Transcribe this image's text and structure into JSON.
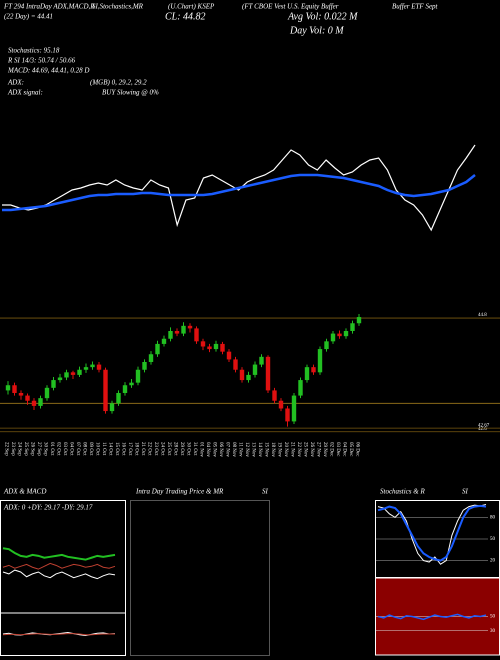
{
  "header": {
    "t1": "FT 294 IntraDay ADX,MACD,R",
    "t2": "SI,Stochastics,MR",
    "t3": "(U.Chart) KSEP",
    "t4": "(FT CBOE Vest U.S. Equity Buffer",
    "t5": "Buffer ETF Sept",
    "ema": "(22  Day) = 44.41",
    "close": "CL: 44.82",
    "avg_vol": "Avg Vol: 0.022  M",
    "day_vol": "Day Vol: 0   M",
    "stoch": "Stochastics: 95.18",
    "rsi": "R      SI 14/3: 50.74 / 50.66",
    "macd": "MACD: 44.69, 44.41, 0.28  D",
    "adx": "ADX:",
    "adx_values": "(MGB) 0, 29.2, 29.2",
    "adx_signal": "ADX  signal:",
    "signal": "BUY Slowing @ 0%"
  },
  "chart_data": [
    {
      "type": "line",
      "ylim": [
        0,
        180
      ],
      "series": [
        {
          "color": "#ffffff",
          "values": [
            85,
            85,
            82,
            80,
            82,
            85,
            90,
            95,
            100,
            102,
            105,
            107,
            105,
            110,
            105,
            102,
            100,
            110,
            105,
            102,
            65,
            90,
            92,
            112,
            115,
            110,
            105,
            100,
            108,
            112,
            115,
            120,
            130,
            140,
            135,
            125,
            120,
            130,
            122,
            115,
            118,
            125,
            130,
            132,
            120,
            100,
            90,
            85,
            75,
            60,
            80,
            100,
            120,
            132,
            145
          ]
        },
        {
          "color": "#1a5cff",
          "values": [
            80,
            80,
            81,
            82,
            83,
            84,
            86,
            88,
            90,
            92,
            94,
            95,
            95,
            96,
            96,
            96,
            97,
            97,
            96,
            95,
            95,
            95,
            95,
            95,
            96,
            98,
            100,
            102,
            104,
            106,
            108,
            110,
            112,
            114,
            115,
            115,
            115,
            114,
            113,
            112,
            110,
            108,
            106,
            104,
            100,
            97,
            95,
            94,
            95,
            96,
            98,
            100,
            104,
            108,
            115
          ]
        }
      ]
    },
    {
      "type": "candlestick",
      "ylim": [
        42.44,
        45.15
      ],
      "yticks": [
        42.6,
        42.67,
        44.8
      ],
      "grid": true,
      "grid_color": "#7a5a10",
      "levels": [
        43.15
      ],
      "level_color": "#8a6a18",
      "up_color": "#22c022",
      "down_color": "#e01010",
      "categories": [
        "22 Sep",
        "23 Sep",
        "24 Sep",
        "25 Sep",
        "26 Sep",
        "27 Sep",
        "30 Sep",
        "01 Oct",
        "02 Oct",
        "03 Oct",
        "04 Oct",
        "07 Oct",
        "08 Oct",
        "09 Oct",
        "10 Oct",
        "11 Oct",
        "14 Oct",
        "15 Oct",
        "16 Oct",
        "17 Oct",
        "18 Oct",
        "21 Oct",
        "22 Oct",
        "23 Oct",
        "24 Oct",
        "25 Oct",
        "28 Oct",
        "29 Oct",
        "30 Oct",
        "31 Oct",
        "01 Nov",
        "04 Nov",
        "05 Nov",
        "06 Nov",
        "07 Nov",
        "08 Nov",
        "11 Nov",
        "12 Nov",
        "13 Nov",
        "14 Nov",
        "15 Nov",
        "18 Nov",
        "19 Nov",
        "20 Nov",
        "21 Nov",
        "22 Nov",
        "25 Nov",
        "26 Nov",
        "27 Nov",
        "29 Nov",
        "02 Dec",
        "03 Dec",
        "04 Dec",
        "05 Dec",
        "06 Dec"
      ],
      "ohlc": [
        [
          43.4,
          43.58,
          43.32,
          43.5
        ],
        [
          43.5,
          43.55,
          43.3,
          43.35
        ],
        [
          43.35,
          43.4,
          43.22,
          43.3
        ],
        [
          43.3,
          43.34,
          43.12,
          43.2
        ],
        [
          43.2,
          43.25,
          43.02,
          43.1
        ],
        [
          43.1,
          43.3,
          43.05,
          43.25
        ],
        [
          43.25,
          43.5,
          43.2,
          43.45
        ],
        [
          43.45,
          43.66,
          43.4,
          43.6
        ],
        [
          43.6,
          43.72,
          43.55,
          43.65
        ],
        [
          43.65,
          43.8,
          43.6,
          43.75
        ],
        [
          43.75,
          43.78,
          43.62,
          43.7
        ],
        [
          43.7,
          43.86,
          43.66,
          43.8
        ],
        [
          43.8,
          43.92,
          43.74,
          43.85
        ],
        [
          43.85,
          43.96,
          43.8,
          43.9
        ],
        [
          43.9,
          43.95,
          43.75,
          43.8
        ],
        [
          43.8,
          43.84,
          42.95,
          43.0
        ],
        [
          43.0,
          43.2,
          42.95,
          43.15
        ],
        [
          43.15,
          43.4,
          43.1,
          43.35
        ],
        [
          43.35,
          43.56,
          43.3,
          43.5
        ],
        [
          43.5,
          43.62,
          43.45,
          43.55
        ],
        [
          43.55,
          43.86,
          43.5,
          43.8
        ],
        [
          43.8,
          44.0,
          43.75,
          43.95
        ],
        [
          43.95,
          44.16,
          43.9,
          44.1
        ],
        [
          44.1,
          44.36,
          44.05,
          44.3
        ],
        [
          44.3,
          44.46,
          44.25,
          44.4
        ],
        [
          44.4,
          44.62,
          44.35,
          44.55
        ],
        [
          44.55,
          44.6,
          44.45,
          44.5
        ],
        [
          44.5,
          44.72,
          44.45,
          44.65
        ],
        [
          44.65,
          44.7,
          44.52,
          44.6
        ],
        [
          44.6,
          44.64,
          44.3,
          44.35
        ],
        [
          44.35,
          44.4,
          44.18,
          44.25
        ],
        [
          44.25,
          44.3,
          44.14,
          44.2
        ],
        [
          44.2,
          44.36,
          44.15,
          44.3
        ],
        [
          44.3,
          44.34,
          44.1,
          44.15
        ],
        [
          44.15,
          44.2,
          43.95,
          44.0
        ],
        [
          44.0,
          44.05,
          43.75,
          43.8
        ],
        [
          43.8,
          43.85,
          43.55,
          43.6
        ],
        [
          43.6,
          43.76,
          43.55,
          43.7
        ],
        [
          43.7,
          43.96,
          43.65,
          43.9
        ],
        [
          43.9,
          44.1,
          43.85,
          44.05
        ],
        [
          44.05,
          44.08,
          43.35,
          43.4
        ],
        [
          43.4,
          43.45,
          43.15,
          43.2
        ],
        [
          43.2,
          43.25,
          43.0,
          43.05
        ],
        [
          43.05,
          43.1,
          42.7,
          42.8
        ],
        [
          42.8,
          43.35,
          42.75,
          43.3
        ],
        [
          43.3,
          43.65,
          43.25,
          43.6
        ],
        [
          43.6,
          43.9,
          43.55,
          43.85
        ],
        [
          43.85,
          43.9,
          43.7,
          43.75
        ],
        [
          43.75,
          44.25,
          43.7,
          44.2
        ],
        [
          44.2,
          44.4,
          44.15,
          44.35
        ],
        [
          44.35,
          44.55,
          44.3,
          44.5
        ],
        [
          44.5,
          44.56,
          44.4,
          44.45
        ],
        [
          44.45,
          44.6,
          44.4,
          44.55
        ],
        [
          44.55,
          44.75,
          44.5,
          44.7
        ],
        [
          44.7,
          44.88,
          44.65,
          44.82
        ]
      ]
    },
    {
      "type": "adx",
      "title": "ADX  & MACD",
      "text": "ADX: 0  +DY: 29.17  -DY: 29.17",
      "ylim": [
        0,
        100
      ],
      "macd_ylim": [
        0,
        100
      ],
      "series": [
        {
          "color": "#22c022",
          "values": [
            65,
            64,
            60,
            57,
            56,
            58,
            57,
            55,
            56,
            57,
            58,
            56,
            55,
            54,
            53,
            55,
            57,
            56,
            57,
            58
          ]
        },
        {
          "color": "#ffffff",
          "values": [
            40,
            38,
            42,
            40,
            35,
            38,
            40,
            36,
            34,
            38,
            40,
            37,
            34,
            36,
            38,
            35,
            33,
            36,
            38,
            37
          ]
        },
        {
          "color": "#c04030",
          "values": [
            45,
            47,
            44,
            46,
            48,
            45,
            43,
            46,
            49,
            47,
            44,
            46,
            48,
            47,
            45,
            46,
            48,
            45,
            44,
            46
          ]
        }
      ],
      "macd_series": [
        {
          "color": "#ffffff",
          "values": [
            50,
            52,
            48,
            47,
            50,
            53,
            51,
            49,
            48,
            50,
            52,
            54,
            51,
            48,
            46,
            49,
            52,
            53,
            50,
            51
          ]
        },
        {
          "color": "#c04030",
          "values": [
            48,
            49,
            49,
            48,
            49,
            50,
            51,
            50,
            49,
            49,
            50,
            51,
            51,
            50,
            48,
            48,
            49,
            50,
            50,
            50
          ]
        }
      ]
    },
    {
      "type": "empty",
      "title": "Intra  Day Trading Price  & MR",
      "title2": "SI"
    },
    {
      "type": "stochastic",
      "title": "Stochastics & R",
      "title2": "SI",
      "ylim": [
        0,
        100
      ],
      "yticks": [
        20,
        50,
        80
      ],
      "series": [
        {
          "color": "#ffffff",
          "values": [
            95,
            93,
            85,
            80,
            88,
            75,
            50,
            30,
            20,
            18,
            25,
            15,
            20,
            55,
            75,
            90,
            95,
            97,
            96,
            98
          ]
        },
        {
          "color": "#1a5cff",
          "values": [
            90,
            92,
            95,
            93,
            85,
            70,
            55,
            40,
            30,
            25,
            22,
            20,
            25,
            40,
            60,
            80,
            92,
            95,
            96,
            95
          ]
        }
      ],
      "rsi_ylim": [
        0,
        100
      ],
      "rsi_yticks": [
        30,
        50
      ],
      "rsi_background": "#8b0000",
      "rsi_series": [
        {
          "color": "#1a5cff",
          "values": [
            50,
            48,
            52,
            49,
            47,
            51,
            50,
            48,
            46,
            49,
            52,
            50,
            49,
            51,
            53,
            50,
            48,
            51,
            50,
            52
          ]
        }
      ]
    }
  ]
}
